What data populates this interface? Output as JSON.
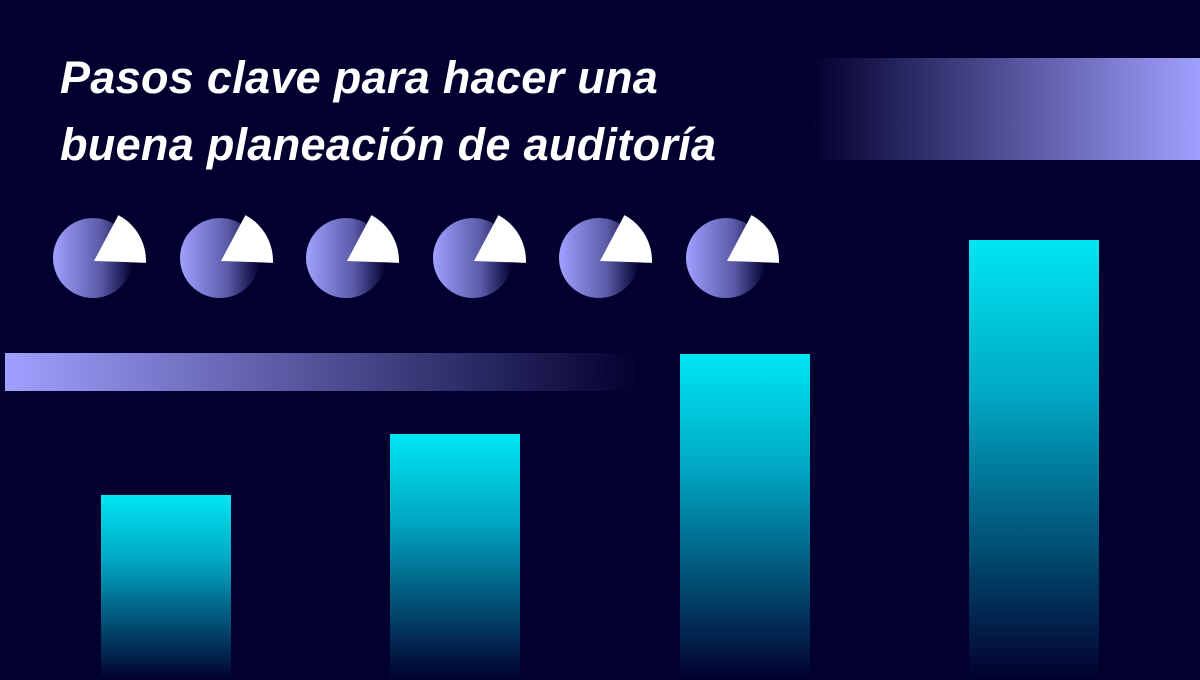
{
  "title": {
    "line1": "Pasos clave para hacer una",
    "line2": "buena planeación de auditoría"
  },
  "colors": {
    "background": "#02002e",
    "accent_lavender": "#a0a0ff",
    "accent_cyan": "#00e6f2",
    "wedge": "#ffffff"
  },
  "decor": {
    "pie_icon_count": 6,
    "pie_icon": "pie-chart-icon",
    "bar_levels": [
      0.42,
      0.56,
      0.74,
      1.0
    ]
  }
}
